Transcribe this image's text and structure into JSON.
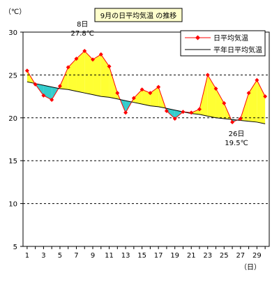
{
  "chart_data": {
    "type": "line",
    "title": "9月の日平均気温 の推移",
    "y_unit_label": "（℃）",
    "x_unit_label": "（日）",
    "ylim": [
      5,
      30
    ],
    "y_ticks": [
      5,
      10,
      15,
      20,
      25,
      30
    ],
    "xlim": [
      0.5,
      30.5
    ],
    "x_ticks": [
      1,
      3,
      5,
      7,
      9,
      11,
      13,
      15,
      17,
      19,
      21,
      23,
      25,
      27,
      29
    ],
    "grid": true,
    "legend_position": "top-right",
    "x": [
      1,
      2,
      3,
      4,
      5,
      6,
      7,
      8,
      9,
      10,
      11,
      12,
      13,
      14,
      15,
      16,
      17,
      18,
      19,
      20,
      21,
      22,
      23,
      24,
      25,
      26,
      27,
      28,
      29,
      30
    ],
    "series": [
      {
        "name": "日平均気温",
        "color": "#ff0000",
        "marker": "diamond",
        "values": [
          25.5,
          23.9,
          22.6,
          22.1,
          23.7,
          25.9,
          26.9,
          27.8,
          26.8,
          27.4,
          26.0,
          22.9,
          20.6,
          22.3,
          23.3,
          22.9,
          23.6,
          20.8,
          19.9,
          20.7,
          20.6,
          21.0,
          25.0,
          23.4,
          21.7,
          19.5,
          19.9,
          22.9,
          24.4,
          22.5
        ]
      },
      {
        "name": "平年日平均気温",
        "color": "#000000",
        "values": [
          24.2,
          24.0,
          23.8,
          23.6,
          23.4,
          23.3,
          23.1,
          22.9,
          22.7,
          22.5,
          22.4,
          22.2,
          22.0,
          21.8,
          21.6,
          21.4,
          21.3,
          21.1,
          20.9,
          20.7,
          20.5,
          20.4,
          20.2,
          20.0,
          19.9,
          19.8,
          19.7,
          19.6,
          19.5,
          19.3
        ]
      }
    ],
    "fill_above_color": "#ffff33",
    "fill_below_color": "#33cccc",
    "annotations": [
      {
        "x": 8,
        "lines": [
          "8日",
          "27.8℃"
        ],
        "placement": "above"
      },
      {
        "x": 26,
        "lines": [
          "26日",
          "19.5℃"
        ],
        "placement": "below"
      }
    ]
  }
}
